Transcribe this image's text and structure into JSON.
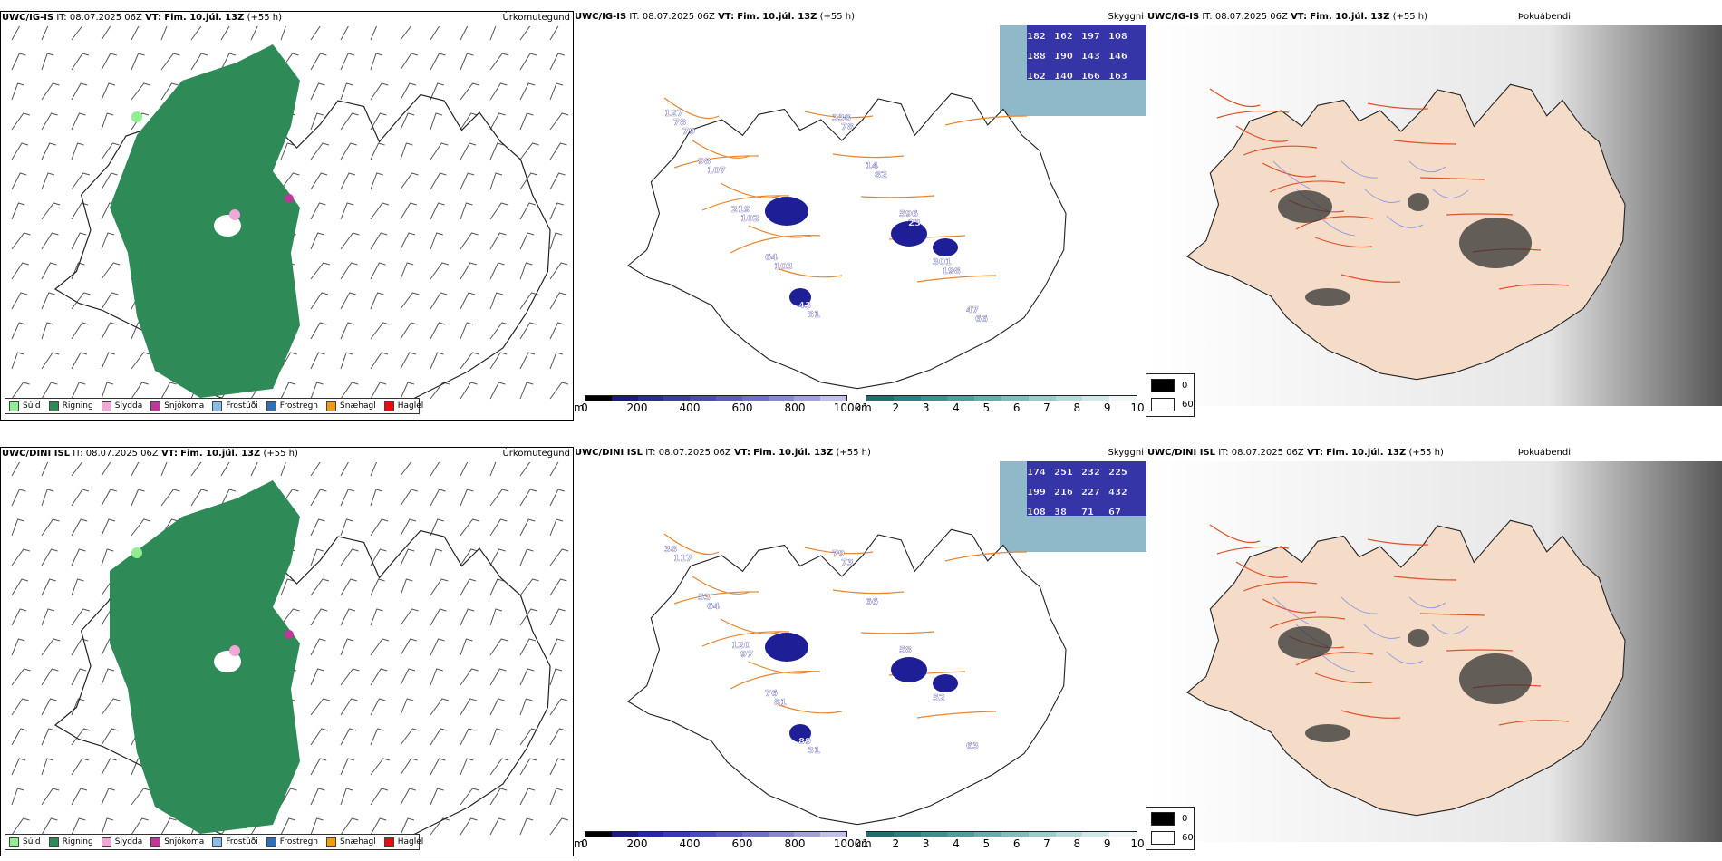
{
  "rows": [
    {
      "model": "UWC/IG-IS",
      "it_label": "IT:",
      "it_value": "08.07.2025 06Z",
      "vt_label": "VT:",
      "vt_value": "Fim. 10.júl. 13Z",
      "lead": "(+55 h)"
    },
    {
      "model": "UWC/DINI ISL",
      "it_label": "IT:",
      "it_value": "08.07.2025 06Z",
      "vt_label": "VT:",
      "vt_value": "Fim. 10.júl. 13Z",
      "lead": "(+55 h)"
    }
  ],
  "panel_titles": {
    "precip": "Úrkomutegund",
    "cloud": "Skyggni",
    "fog": "Þokuábendi"
  },
  "precip_legend": [
    {
      "label": "Súld",
      "color": "#90ee90"
    },
    {
      "label": "Rigning",
      "color": "#2e8b57"
    },
    {
      "label": "Slydda",
      "color": "#f4a6d7"
    },
    {
      "label": "Snjókoma",
      "color": "#c0379a"
    },
    {
      "label": "Frostúði",
      "color": "#87bde8"
    },
    {
      "label": "Frostregn",
      "color": "#2f6fb8"
    },
    {
      "label": "Snæhagl",
      "color": "#f09a1a"
    },
    {
      "label": "Haglél",
      "color": "#e01010"
    }
  ],
  "height_scale": {
    "unit": "m",
    "ticks": [
      "0",
      "200",
      "400",
      "600",
      "800",
      "1000"
    ],
    "colors": [
      "#000000",
      "#1a1a80",
      "#2828a0",
      "#3a3ab0",
      "#4a4ab8",
      "#5c5cc0",
      "#7070c8",
      "#8888d2",
      "#a0a0dc",
      "#c0c0e8"
    ]
  },
  "vis_scale": {
    "unit": "km",
    "ticks": [
      "1",
      "2",
      "3",
      "4",
      "5",
      "6",
      "7",
      "8",
      "9",
      "10"
    ],
    "colors": [
      "#1f6f6f",
      "#2a8080",
      "#3b9090",
      "#4e9e9e",
      "#66aeae",
      "#80bebe",
      "#9acccc",
      "#b4dada",
      "#d0e8e8",
      "#eef8f8"
    ]
  },
  "fog_legend": [
    {
      "label": "0",
      "color": "#000000"
    },
    {
      "label": "60",
      "color": "#ffffff"
    }
  ],
  "cloud_labels_top": [
    "182",
    "162",
    "197",
    "108",
    "188",
    "190",
    "143",
    "146",
    "162",
    "140",
    "166",
    "163",
    "127",
    "98",
    "219",
    "64",
    "43",
    "338",
    "14",
    "596",
    "301",
    "47",
    "78",
    "107",
    "102",
    "103",
    "81",
    "78",
    "82",
    "23",
    "198",
    "66",
    "79"
  ],
  "cloud_labels_bottom": [
    "174",
    "251",
    "232",
    "225",
    "199",
    "216",
    "227",
    "432",
    "108",
    "38",
    "71",
    "67",
    "38",
    "53",
    "120",
    "76",
    "89",
    "79",
    "66",
    "58",
    "52",
    "63",
    "117",
    "64",
    "97",
    "81",
    "31",
    "73"
  ]
}
